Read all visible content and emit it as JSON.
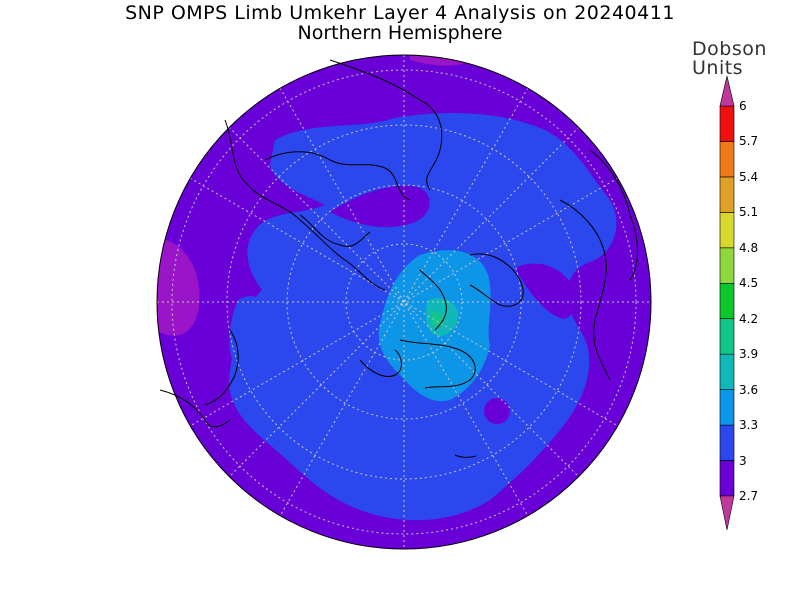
{
  "title": "SNP OMPS Limb Umkehr Layer 4 Analysis on 20240411",
  "subtitle": "Northern Hemisphere",
  "colorbar": {
    "units_line1": "Dobson",
    "units_line2": "Units",
    "ticks": [
      "2.7",
      "3",
      "3.3",
      "3.6",
      "3.9",
      "4.2",
      "4.5",
      "4.8",
      "5.1",
      "5.4",
      "5.7",
      "6"
    ],
    "bins": [
      {
        "from": 2.7,
        "to": 3.0,
        "color": "#6a00d8"
      },
      {
        "from": 3.0,
        "to": 3.3,
        "color": "#2b47ee"
      },
      {
        "from": 3.3,
        "to": 3.6,
        "color": "#0d96e8"
      },
      {
        "from": 3.6,
        "to": 3.9,
        "color": "#10b8b8"
      },
      {
        "from": 3.9,
        "to": 4.2,
        "color": "#12c58a"
      },
      {
        "from": 4.2,
        "to": 4.5,
        "color": "#0cc62a"
      },
      {
        "from": 4.5,
        "to": 4.8,
        "color": "#8ed83c"
      },
      {
        "from": 4.8,
        "to": 5.1,
        "color": "#d8d82c"
      },
      {
        "from": 5.1,
        "to": 5.4,
        "color": "#e0a028"
      },
      {
        "from": 5.4,
        "to": 5.7,
        "color": "#f07a18"
      },
      {
        "from": 5.7,
        "to": 6.0,
        "color": "#ee1010"
      }
    ],
    "below_color": "#c0389c",
    "above_color": "#c0389c"
  },
  "map": {
    "projection": "north polar stereographic",
    "field_colors": {
      "background": "#6a00d8",
      "low": "#9a14c8",
      "mid": "#2b47ee",
      "high": "#0d96e8",
      "peak": "#10b8b8",
      "max": "#12c58a"
    }
  }
}
